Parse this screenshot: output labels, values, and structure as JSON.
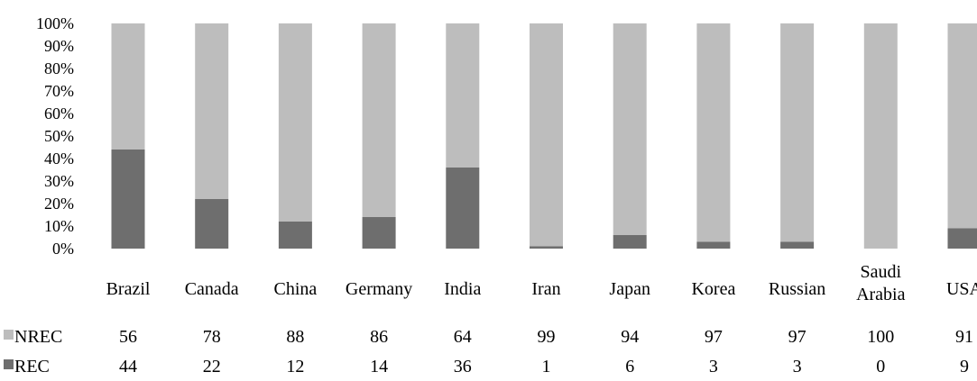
{
  "chart_data": {
    "type": "bar",
    "stacked": true,
    "percent": true,
    "categories": [
      "Brazil",
      "Canada",
      "China",
      "Germany",
      "India",
      "Iran",
      "Japan",
      "Korea",
      "Russian",
      "Saudi Arabia",
      "USA"
    ],
    "category_lines": [
      [
        "Brazil"
      ],
      [
        "Canada"
      ],
      [
        "China"
      ],
      [
        "Germany"
      ],
      [
        "India"
      ],
      [
        "Iran"
      ],
      [
        "Japan"
      ],
      [
        "Korea"
      ],
      [
        "Russian"
      ],
      [
        "Saudi",
        "Arabia"
      ],
      [
        "USA"
      ]
    ],
    "series": [
      {
        "name": "REC",
        "color": "#6e6e6e",
        "values": [
          44,
          22,
          12,
          14,
          36,
          1,
          6,
          3,
          3,
          0,
          9
        ]
      },
      {
        "name": "NREC",
        "color": "#bdbdbd",
        "values": [
          56,
          78,
          88,
          86,
          64,
          99,
          94,
          97,
          97,
          100,
          91
        ]
      }
    ],
    "table_order": [
      "NREC",
      "REC"
    ],
    "ylim": [
      0,
      100
    ],
    "yticks": [
      "0%",
      "10%",
      "20%",
      "30%",
      "40%",
      "50%",
      "60%",
      "70%",
      "80%",
      "90%",
      "100%"
    ],
    "grid": false,
    "legend": "data-table"
  }
}
